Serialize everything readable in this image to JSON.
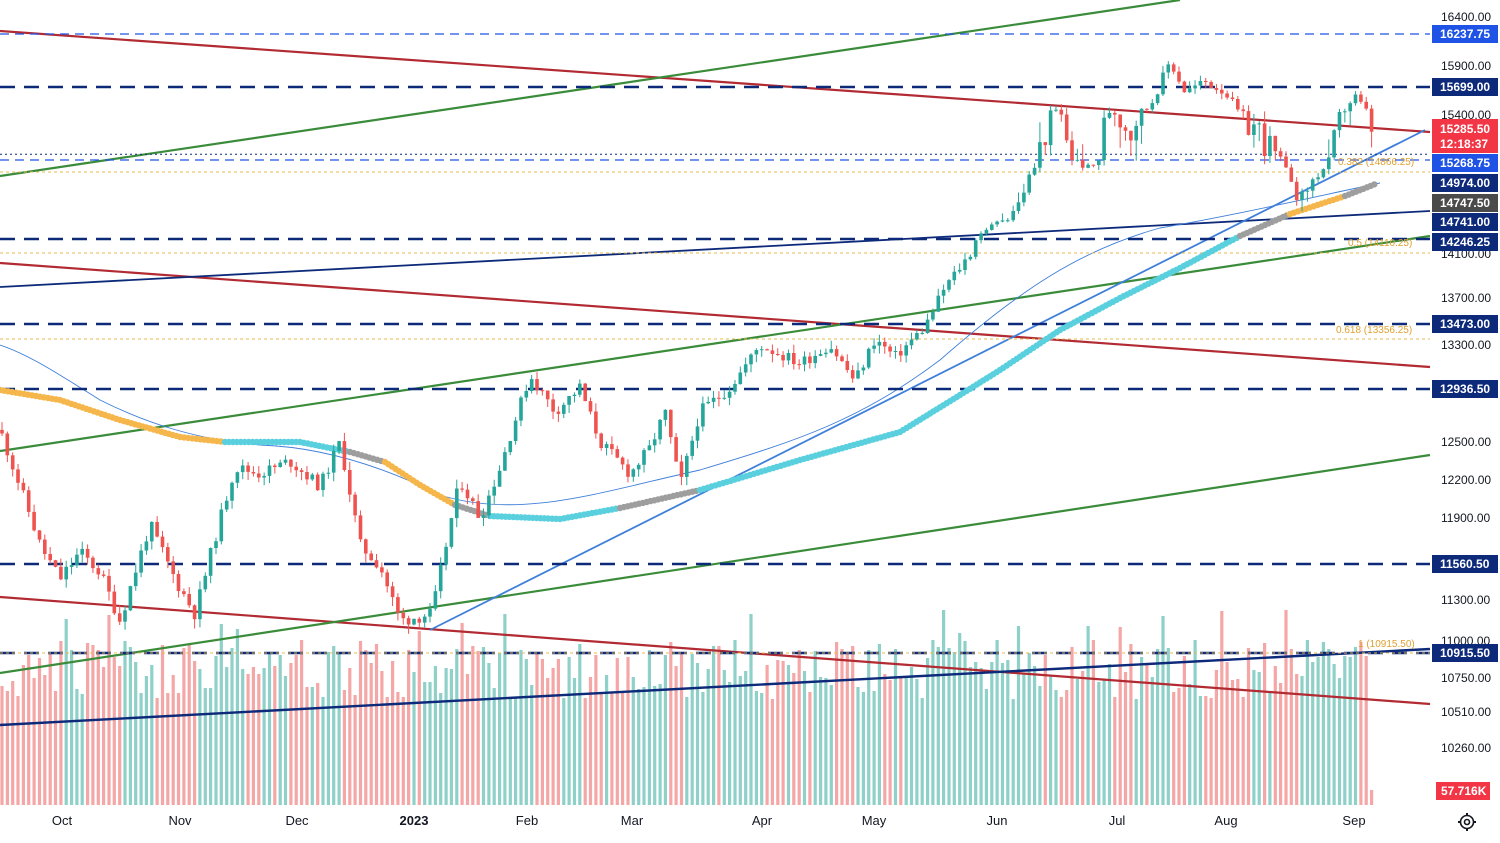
{
  "chart_data": {
    "type": "candlestick",
    "y_axis": {
      "ticks": [
        "16400.00",
        "15900.00",
        "15400.00",
        "14100.00",
        "13700.00",
        "13300.00",
        "12500.00",
        "12200.00",
        "11900.00",
        "11300.00",
        "11000.00",
        "10750.00",
        "10510.00",
        "10260.00"
      ]
    },
    "x_axis": {
      "labels": [
        {
          "text": "Oct",
          "bold": false
        },
        {
          "text": "Nov",
          "bold": false
        },
        {
          "text": "Dec",
          "bold": false
        },
        {
          "text": "2023",
          "bold": true
        },
        {
          "text": "Feb",
          "bold": false
        },
        {
          "text": "Mar",
          "bold": false
        },
        {
          "text": "Apr",
          "bold": false
        },
        {
          "text": "May",
          "bold": false
        },
        {
          "text": "Jun",
          "bold": false
        },
        {
          "text": "Jul",
          "bold": false
        },
        {
          "text": "Aug",
          "bold": false
        },
        {
          "text": "Sep",
          "bold": false
        }
      ]
    },
    "price_levels": [
      {
        "value": "16237.75",
        "color": "#1e53e5",
        "style": "dashed-blue"
      },
      {
        "value": "15699.00",
        "color": "#0d2a7a",
        "style": "dashed-navy"
      },
      {
        "value": "15285.50",
        "color": "#f23645",
        "style": "last-price",
        "countdown": "12:18:37"
      },
      {
        "value": "15268.75",
        "color": "#1e53e5",
        "style": "dashed-blue"
      },
      {
        "value": "14974.00",
        "color": "#0d2a7a",
        "style": "tag-only"
      },
      {
        "value": "14747.50",
        "color": "#4a4a4a",
        "style": "tag-only"
      },
      {
        "value": "14741.00",
        "color": "#0d2a7a",
        "style": "tag-only"
      },
      {
        "value": "14246.25",
        "color": "#0d2a7a",
        "style": "dashed-navy"
      },
      {
        "value": "13473.00",
        "color": "#0d2a7a",
        "style": "dashed-navy"
      },
      {
        "value": "12936.50",
        "color": "#0d2a7a",
        "style": "dashed-navy"
      },
      {
        "value": "11560.50",
        "color": "#0d2a7a",
        "style": "dashed-navy"
      },
      {
        "value": "10915.50",
        "color": "#0d2a7a",
        "style": "dashed-navy"
      }
    ],
    "volume_tag": "57.716K",
    "fib_levels": [
      {
        "label": "0.382 (14866.25)"
      },
      {
        "label": "0.5 (14110.25)"
      },
      {
        "label": "0.618 (13356.25)"
      },
      {
        "label": "1 (10915.50)"
      }
    ],
    "colors": {
      "up": "#26a69a",
      "down": "#ef5350",
      "vol_up": "#8fd0c9",
      "vol_down": "#f4a7a6",
      "ma_cyan": "#5ad0de",
      "ma_orange": "#f5b74c",
      "ma_gray": "#9e9e9e",
      "trend_red": "#b22a32",
      "trend_green": "#3a8c3a",
      "trend_navy": "#0d2a7a",
      "trend_blue": "#3f7fd9"
    }
  }
}
